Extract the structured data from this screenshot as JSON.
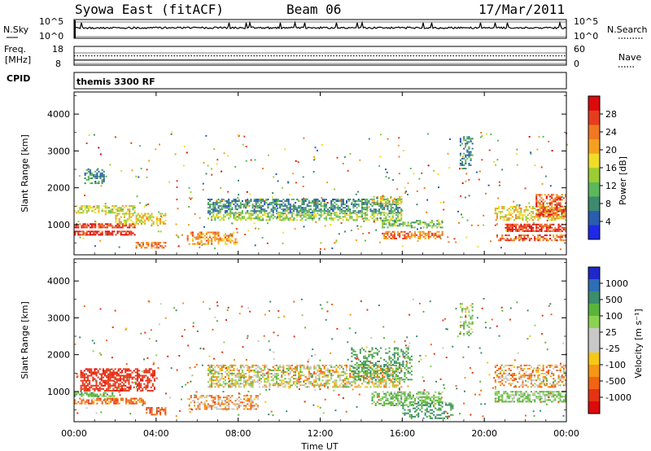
{
  "header": {
    "station": "Syowa East (fitACF)",
    "beam": "Beam 06",
    "date": "17/Mar/2011"
  },
  "noise_panel": {
    "left_label": "N.Sky",
    "right_label": "N.Search",
    "left_top": "10^5",
    "left_bottom": "10^0",
    "right_top": "10^5",
    "right_bottom": "10^0"
  },
  "freq_panel": {
    "left_label_line1": "Freq.",
    "left_label_line2": "[MHz]",
    "left_top": "18",
    "left_bottom": "8",
    "right_top": "60",
    "right_bottom": "0",
    "right_label": "Nave"
  },
  "cpid_panel": {
    "left_label": "CPID",
    "text": "themis 3300 RF"
  },
  "axes": {
    "xlabel": "Time UT",
    "ylabel": "Slant Range [km]",
    "x_ticks": [
      "00:00",
      "04:00",
      "08:00",
      "12:00",
      "16:00",
      "20:00",
      "00:00"
    ],
    "y_ticks": [
      "1000",
      "2000",
      "3000",
      "4000"
    ]
  },
  "power_bar": {
    "label": "Power [dB]",
    "ticks": [
      "4",
      "8",
      "12",
      "16",
      "20",
      "24",
      "28"
    ],
    "colors": [
      "#1e28e6",
      "#2a5cb0",
      "#3d8a6e",
      "#5cb85c",
      "#9acd32",
      "#f0dc28",
      "#f5a020",
      "#f07820",
      "#e63c1e",
      "#dc0a0a"
    ]
  },
  "velocity_bar": {
    "label": "Velocity [m s⁻¹]",
    "ticks": [
      "1000",
      "500",
      "100",
      "25",
      "-25",
      "-100",
      "-500",
      "-1000"
    ],
    "colors": [
      "#1e28c8",
      "#2e6eb4",
      "#3c8c6e",
      "#5ab43c",
      "#8cd250",
      "#c8c8c8",
      "#c8c8c8",
      "#f5c814",
      "#f59614",
      "#f06414",
      "#e63214",
      "#dc0a0a"
    ]
  },
  "chart_data": [
    {
      "type": "heatmap",
      "title": "Power [dB]",
      "xlabel": "Time UT",
      "ylabel": "Slant Range [km]",
      "x_range_hours": [
        0,
        24
      ],
      "y_range_km": [
        180,
        4600
      ],
      "colorbar_range_db": [
        0,
        32
      ],
      "regions": [
        {
          "t": [
            0.0,
            3.0
          ],
          "r": [
            1300,
            1500
          ],
          "value": 16,
          "density": 0.55
        },
        {
          "t": [
            0.0,
            3.0
          ],
          "r": [
            900,
            1000
          ],
          "value": 28,
          "density": 0.75
        },
        {
          "t": [
            0.0,
            3.0
          ],
          "r": [
            700,
            800
          ],
          "value": 28,
          "density": 0.75
        },
        {
          "t": [
            2.0,
            4.5
          ],
          "r": [
            1000,
            1300
          ],
          "value": 18,
          "density": 0.5
        },
        {
          "t": [
            3.0,
            4.5
          ],
          "r": [
            350,
            500
          ],
          "value": 24,
          "density": 0.6
        },
        {
          "t": [
            6.5,
            16.0
          ],
          "r": [
            1300,
            1700
          ],
          "value": 8,
          "density": 0.6
        },
        {
          "t": [
            6.5,
            16.0
          ],
          "r": [
            1100,
            1300
          ],
          "value": 14,
          "density": 0.55
        },
        {
          "t": [
            5.5,
            8.0
          ],
          "r": [
            450,
            800
          ],
          "value": 22,
          "density": 0.45
        },
        {
          "t": [
            14.5,
            16.0
          ],
          "r": [
            1550,
            1750
          ],
          "value": 18,
          "density": 0.55
        },
        {
          "t": [
            15.0,
            18.0
          ],
          "r": [
            600,
            800
          ],
          "value": 24,
          "density": 0.55
        },
        {
          "t": [
            15.0,
            18.0
          ],
          "r": [
            900,
            1100
          ],
          "value": 12,
          "density": 0.5
        },
        {
          "t": [
            18.8,
            19.5
          ],
          "r": [
            2500,
            3400
          ],
          "value": 8,
          "density": 0.4
        },
        {
          "t": [
            20.5,
            24.0
          ],
          "r": [
            1100,
            1500
          ],
          "value": 18,
          "density": 0.5
        },
        {
          "t": [
            21.0,
            24.0
          ],
          "r": [
            800,
            1000
          ],
          "value": 28,
          "density": 0.7
        },
        {
          "t": [
            20.5,
            24.0
          ],
          "r": [
            550,
            700
          ],
          "value": 26,
          "density": 0.55
        },
        {
          "t": [
            22.5,
            24.0
          ],
          "r": [
            1200,
            1800
          ],
          "value": 26,
          "density": 0.55
        },
        {
          "t": [
            0.5,
            1.5
          ],
          "r": [
            2100,
            2500
          ],
          "value": 8,
          "density": 0.4
        }
      ]
    },
    {
      "type": "heatmap",
      "title": "Velocity [m s⁻¹]",
      "xlabel": "Time UT",
      "ylabel": "Slant Range [km]",
      "x_range_hours": [
        0,
        24
      ],
      "y_range_km": [
        180,
        4600
      ],
      "colorbar_range_ms": [
        -1000,
        1000
      ],
      "regions": [
        {
          "t": [
            0.3,
            4.0
          ],
          "r": [
            1000,
            1600
          ],
          "value": -400,
          "density": 0.6
        },
        {
          "t": [
            0.0,
            2.0
          ],
          "r": [
            850,
            950
          ],
          "value": 200,
          "density": 0.6
        },
        {
          "t": [
            0.0,
            3.5
          ],
          "r": [
            650,
            800
          ],
          "value": -150,
          "density": 0.55
        },
        {
          "t": [
            3.5,
            4.5
          ],
          "r": [
            350,
            550
          ],
          "value": -200,
          "density": 0.55
        },
        {
          "t": [
            6.5,
            16.0
          ],
          "r": [
            1100,
            1700
          ],
          "value": 0,
          "density": 0.55
        },
        {
          "t": [
            5.5,
            9.0
          ],
          "r": [
            500,
            900
          ],
          "value": -80,
          "density": 0.45
        },
        {
          "t": [
            14.5,
            18.0
          ],
          "r": [
            600,
            1000
          ],
          "value": 150,
          "density": 0.55
        },
        {
          "t": [
            13.5,
            16.5
          ],
          "r": [
            1300,
            2200
          ],
          "value": 250,
          "density": 0.35
        },
        {
          "t": [
            16.0,
            18.5
          ],
          "r": [
            250,
            700
          ],
          "value": 300,
          "density": 0.4
        },
        {
          "t": [
            20.5,
            24.0
          ],
          "r": [
            700,
            1000
          ],
          "value": 120,
          "density": 0.6
        },
        {
          "t": [
            20.5,
            24.0
          ],
          "r": [
            1100,
            1700
          ],
          "value": -60,
          "density": 0.45
        },
        {
          "t": [
            18.8,
            19.5
          ],
          "r": [
            2500,
            3400
          ],
          "value": 60,
          "density": 0.4
        }
      ]
    },
    {
      "type": "line",
      "title": "N.Sky",
      "x_range_hours": [
        0,
        24
      ],
      "y_range": [
        "10^0",
        "10^5"
      ],
      "baseline_fraction": 0.6,
      "spikes_fraction_peak": 0.95
    },
    {
      "type": "scatter",
      "title": "Freq. [MHz]",
      "x_range_hours": [
        0,
        24
      ],
      "y_range_mhz": [
        8,
        18
      ],
      "freq_mhz": 10,
      "nave": 27
    }
  ]
}
